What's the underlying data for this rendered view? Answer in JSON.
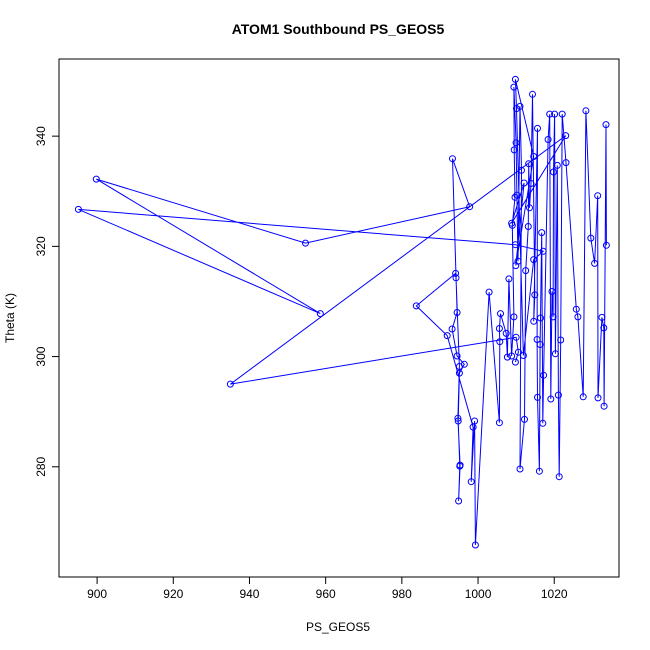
{
  "chart_data": {
    "type": "line",
    "title": "ATOM1 Southbound PS_GEOS5",
    "xlabel": "PS_GEOS5",
    "ylabel": "Theta (K)",
    "xlim": [
      890,
      1037
    ],
    "ylim": [
      260,
      354
    ],
    "xticks": [
      900,
      920,
      940,
      960,
      980,
      1000,
      1020
    ],
    "yticks": [
      280,
      300,
      320,
      340
    ],
    "grid": false,
    "legend": "none",
    "line_color": "#0000ff",
    "marker": "open-circle",
    "series": [
      {
        "values": [
          [
            1009.8,
            299.0
          ],
          [
            1010.6,
            300.8
          ],
          [
            1010.0,
            303.5
          ],
          [
            935.0,
            295.0
          ],
          [
            1023.0,
            340.1
          ],
          [
            1008.8,
            324.2
          ],
          [
            1012.1,
            331.5
          ],
          [
            1009.9,
            316.5
          ],
          [
            1014.6,
            336.3
          ],
          [
            1009.8,
            350.3
          ],
          [
            1010.1,
            345.0
          ],
          [
            1011.9,
            300.2
          ],
          [
            1014.6,
            317.6
          ],
          [
            1017.1,
            319.1
          ],
          [
            1009.8,
            320.3
          ],
          [
            895.1,
            326.7
          ],
          [
            958.6,
            307.8
          ],
          [
            899.8,
            332.2
          ],
          [
            954.7,
            320.6
          ],
          [
            997.8,
            327.2
          ],
          [
            993.3,
            335.9
          ],
          [
            994.5,
            308.0
          ],
          [
            993.2,
            305.0
          ],
          [
            994.5,
            300.1
          ],
          [
            996.4,
            298.6
          ],
          [
            995.1,
            297.0
          ],
          [
            994.8,
            288.3
          ],
          [
            995.2,
            280.1
          ],
          [
            994.9,
            273.8
          ],
          [
            995.3,
            280.3
          ],
          [
            994.7,
            288.8
          ],
          [
            995.1,
            298.2
          ],
          [
            994.2,
            314.3
          ],
          [
            994.1,
            315.1
          ],
          [
            983.8,
            309.2
          ],
          [
            991.9,
            303.8
          ],
          [
            998.7,
            287.2
          ],
          [
            998.2,
            277.3
          ],
          [
            999.1,
            288.3
          ],
          [
            999.3,
            265.8
          ],
          [
            1002.9,
            311.7
          ],
          [
            1005.6,
            288.0
          ],
          [
            1005.7,
            302.7
          ],
          [
            1005.6,
            305.1
          ],
          [
            1005.9,
            307.8
          ],
          [
            1007.4,
            304.2
          ],
          [
            1007.7,
            299.9
          ],
          [
            1008.1,
            314.1
          ],
          [
            1008.8,
            300.1
          ],
          [
            1009.4,
            307.2
          ],
          [
            1009.0,
            323.8
          ],
          [
            1009.7,
            328.9
          ],
          [
            1009.5,
            337.5
          ],
          [
            1009.4,
            348.9
          ],
          [
            1010.0,
            338.8
          ],
          [
            1010.2,
            329.3
          ],
          [
            1010.5,
            317.3
          ],
          [
            1011.0,
            345.4
          ],
          [
            1011.4,
            333.8
          ],
          [
            1011.0,
            279.6
          ],
          [
            1012.2,
            288.6
          ],
          [
            1012.5,
            315.6
          ],
          [
            1013.2,
            323.6
          ],
          [
            1013.3,
            335.0
          ],
          [
            1013.5,
            327.0
          ],
          [
            1013.9,
            331.4
          ],
          [
            1014.3,
            347.6
          ],
          [
            1014.9,
            311.2
          ],
          [
            1014.6,
            306.4
          ],
          [
            1015.6,
            341.4
          ],
          [
            1015.5,
            303.1
          ],
          [
            1015.6,
            292.6
          ],
          [
            1016.1,
            279.2
          ],
          [
            1016.3,
            302.2
          ],
          [
            1016.4,
            307.0
          ],
          [
            1016.7,
            322.5
          ],
          [
            1017.0,
            287.9
          ],
          [
            1017.2,
            296.6
          ],
          [
            1018.4,
            339.4
          ],
          [
            1018.8,
            344.0
          ],
          [
            1019.1,
            292.3
          ],
          [
            1019.4,
            311.8
          ],
          [
            1019.7,
            307.2
          ],
          [
            1019.8,
            333.5
          ],
          [
            1020.1,
            344.0
          ],
          [
            1020.3,
            300.5
          ],
          [
            1020.8,
            334.7
          ],
          [
            1021.1,
            293.0
          ],
          [
            1021.3,
            278.2
          ],
          [
            1021.7,
            303.0
          ],
          [
            1022.1,
            344.0
          ],
          [
            1023.1,
            335.2
          ],
          [
            1025.8,
            308.6
          ],
          [
            1026.2,
            307.2
          ],
          [
            1027.6,
            292.7
          ],
          [
            1028.3,
            344.6
          ],
          [
            1029.6,
            321.5
          ],
          [
            1030.6,
            316.9
          ],
          [
            1031.4,
            329.2
          ],
          [
            1031.5,
            292.5
          ],
          [
            1032.5,
            307.1
          ],
          [
            1033.0,
            305.2
          ],
          [
            1033.1,
            291.0
          ],
          [
            1033.6,
            342.1
          ],
          [
            1033.7,
            320.2
          ]
        ]
      }
    ]
  }
}
